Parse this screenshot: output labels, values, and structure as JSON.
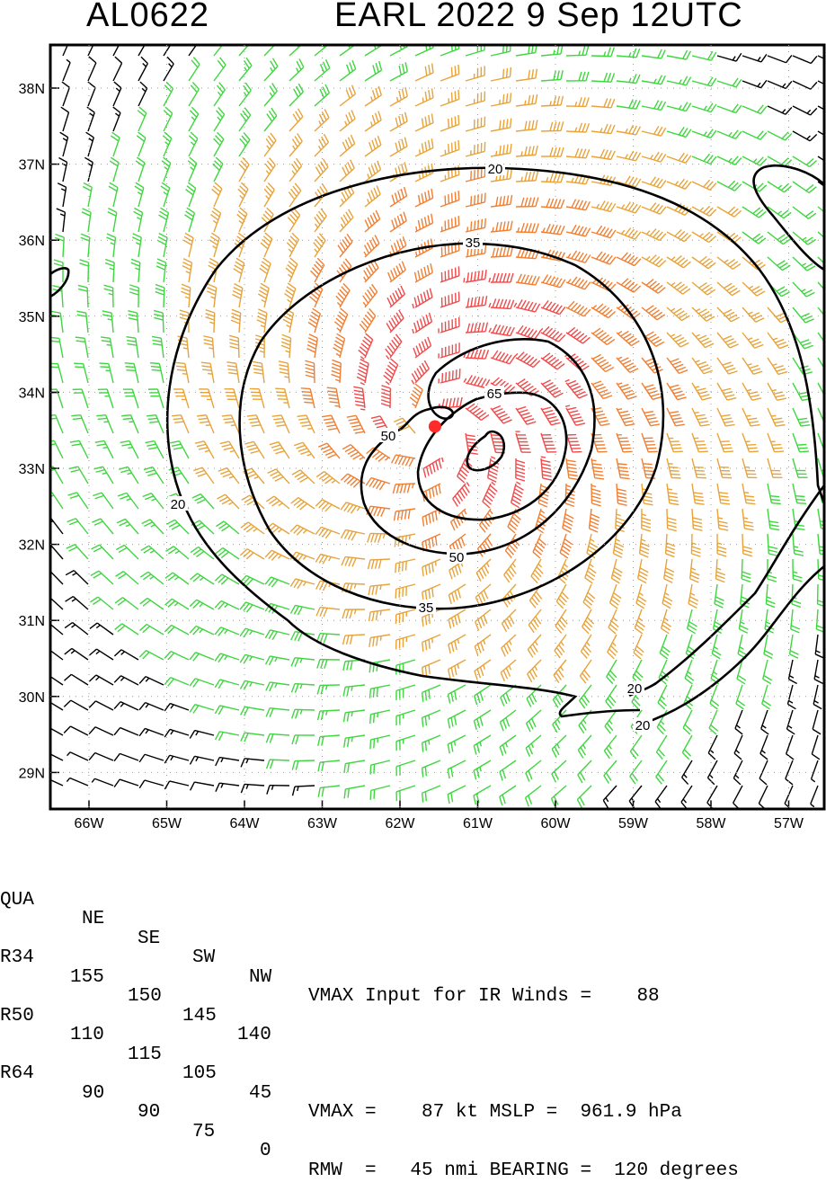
{
  "header": {
    "storm_id": "AL0622",
    "storm_title": "EARL 2022  9 Sep 12UTC"
  },
  "map": {
    "lat_labels": [
      "38N",
      "37N",
      "36N",
      "35N",
      "34N",
      "33N",
      "32N",
      "31N",
      "30N",
      "29N"
    ],
    "lon_labels": [
      "66W",
      "65W",
      "64W",
      "63W",
      "62W",
      "61W",
      "60W",
      "59W",
      "58W",
      "57W"
    ],
    "lat_range": [
      28.6,
      38.6
    ],
    "lon_range": [
      66.6,
      56.5
    ],
    "storm_center": {
      "lat": 33.55,
      "lon": 61.55,
      "color": "#ff2b2b"
    },
    "contour_labels": [
      "20",
      "35",
      "50",
      "65",
      "50",
      "35",
      "20",
      "20",
      "20"
    ],
    "wind_colors": {
      "calm": "#000000",
      "tropical_storm": "#3fd63f",
      "strong_storm": "#e8a33a",
      "hurricane": "#f07f33",
      "major": "#f04a4a"
    }
  },
  "table": {
    "header": {
      "c0": "QUA",
      "c1": "NE",
      "c2": "SE",
      "c3": "SW",
      "c4": "NW",
      "right": "VMAX Input for IR Winds =    88"
    },
    "rows": [
      {
        "c0": "R34",
        "c1": "155",
        "c2": "150",
        "c3": "145",
        "c4": "140",
        "right": ""
      },
      {
        "c0": "R50",
        "c1": "110",
        "c2": "115",
        "c3": "105",
        "c4": "45",
        "right": "VMAX =    87 kt MSLP =  961.9 hPa"
      },
      {
        "c0": "R64",
        "c1": "90",
        "c2": "90",
        "c3": "75",
        "c4": "0",
        "right": "RMW  =   45 nmi BEARING =  120 degrees"
      }
    ]
  }
}
